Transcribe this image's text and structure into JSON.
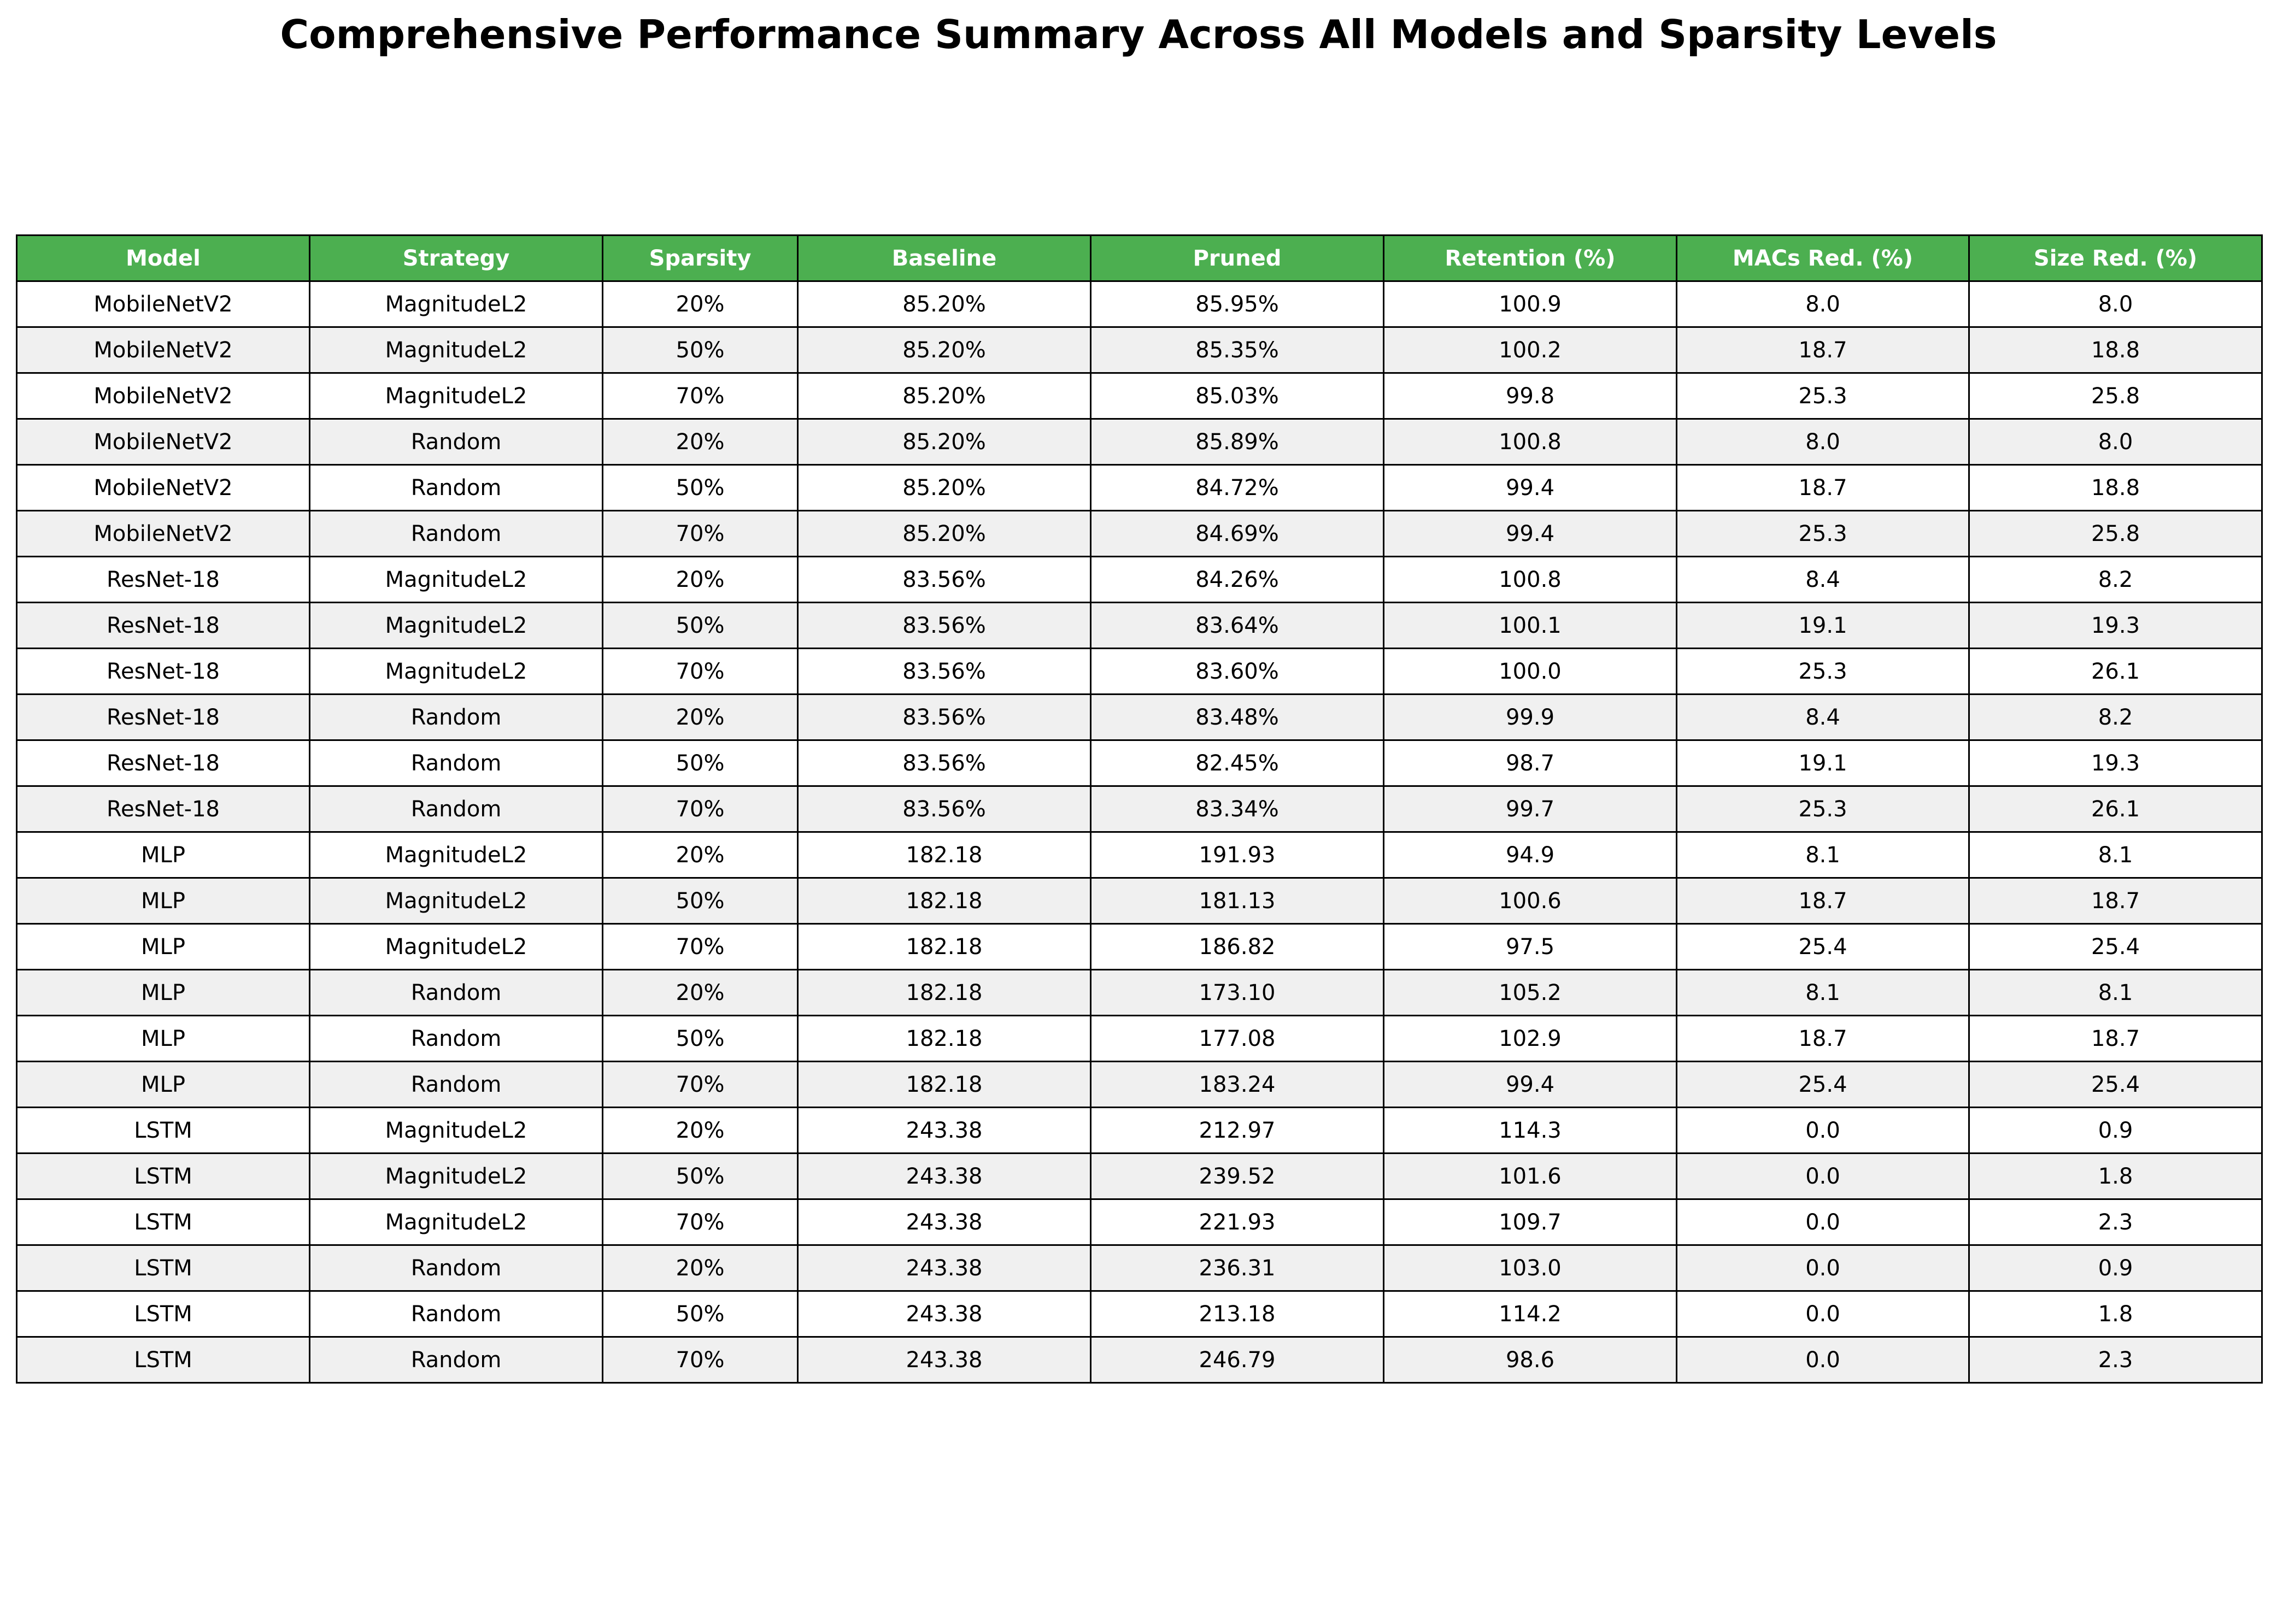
{
  "title": "Comprehensive Performance Summary Across All Models and Sparsity Levels",
  "colors": {
    "header_bg": "#4caf50",
    "header_text": "#ffffff",
    "row_odd_bg": "#ffffff",
    "row_even_bg": "#f0f0f0",
    "border": "#000000"
  },
  "chart_data": {
    "type": "table",
    "title": "Comprehensive Performance Summary Across All Models and Sparsity Levels",
    "columns": [
      "Model",
      "Strategy",
      "Sparsity",
      "Baseline",
      "Pruned",
      "Retention (%)",
      "MACs Red. (%)",
      "Size Red. (%)"
    ],
    "rows": [
      [
        "MobileNetV2",
        "MagnitudeL2",
        "20%",
        "85.20%",
        "85.95%",
        "100.9",
        "8.0",
        "8.0"
      ],
      [
        "MobileNetV2",
        "MagnitudeL2",
        "50%",
        "85.20%",
        "85.35%",
        "100.2",
        "18.7",
        "18.8"
      ],
      [
        "MobileNetV2",
        "MagnitudeL2",
        "70%",
        "85.20%",
        "85.03%",
        "99.8",
        "25.3",
        "25.8"
      ],
      [
        "MobileNetV2",
        "Random",
        "20%",
        "85.20%",
        "85.89%",
        "100.8",
        "8.0",
        "8.0"
      ],
      [
        "MobileNetV2",
        "Random",
        "50%",
        "85.20%",
        "84.72%",
        "99.4",
        "18.7",
        "18.8"
      ],
      [
        "MobileNetV2",
        "Random",
        "70%",
        "85.20%",
        "84.69%",
        "99.4",
        "25.3",
        "25.8"
      ],
      [
        "ResNet-18",
        "MagnitudeL2",
        "20%",
        "83.56%",
        "84.26%",
        "100.8",
        "8.4",
        "8.2"
      ],
      [
        "ResNet-18",
        "MagnitudeL2",
        "50%",
        "83.56%",
        "83.64%",
        "100.1",
        "19.1",
        "19.3"
      ],
      [
        "ResNet-18",
        "MagnitudeL2",
        "70%",
        "83.56%",
        "83.60%",
        "100.0",
        "25.3",
        "26.1"
      ],
      [
        "ResNet-18",
        "Random",
        "20%",
        "83.56%",
        "83.48%",
        "99.9",
        "8.4",
        "8.2"
      ],
      [
        "ResNet-18",
        "Random",
        "50%",
        "83.56%",
        "82.45%",
        "98.7",
        "19.1",
        "19.3"
      ],
      [
        "ResNet-18",
        "Random",
        "70%",
        "83.56%",
        "83.34%",
        "99.7",
        "25.3",
        "26.1"
      ],
      [
        "MLP",
        "MagnitudeL2",
        "20%",
        "182.18",
        "191.93",
        "94.9",
        "8.1",
        "8.1"
      ],
      [
        "MLP",
        "MagnitudeL2",
        "50%",
        "182.18",
        "181.13",
        "100.6",
        "18.7",
        "18.7"
      ],
      [
        "MLP",
        "MagnitudeL2",
        "70%",
        "182.18",
        "186.82",
        "97.5",
        "25.4",
        "25.4"
      ],
      [
        "MLP",
        "Random",
        "20%",
        "182.18",
        "173.10",
        "105.2",
        "8.1",
        "8.1"
      ],
      [
        "MLP",
        "Random",
        "50%",
        "182.18",
        "177.08",
        "102.9",
        "18.7",
        "18.7"
      ],
      [
        "MLP",
        "Random",
        "70%",
        "182.18",
        "183.24",
        "99.4",
        "25.4",
        "25.4"
      ],
      [
        "LSTM",
        "MagnitudeL2",
        "20%",
        "243.38",
        "212.97",
        "114.3",
        "0.0",
        "0.9"
      ],
      [
        "LSTM",
        "MagnitudeL2",
        "50%",
        "243.38",
        "239.52",
        "101.6",
        "0.0",
        "1.8"
      ],
      [
        "LSTM",
        "MagnitudeL2",
        "70%",
        "243.38",
        "221.93",
        "109.7",
        "0.0",
        "2.3"
      ],
      [
        "LSTM",
        "Random",
        "20%",
        "243.38",
        "236.31",
        "103.0",
        "0.0",
        "0.9"
      ],
      [
        "LSTM",
        "Random",
        "50%",
        "243.38",
        "213.18",
        "114.2",
        "0.0",
        "1.8"
      ],
      [
        "LSTM",
        "Random",
        "70%",
        "243.38",
        "246.79",
        "98.6",
        "0.0",
        "2.3"
      ]
    ]
  }
}
